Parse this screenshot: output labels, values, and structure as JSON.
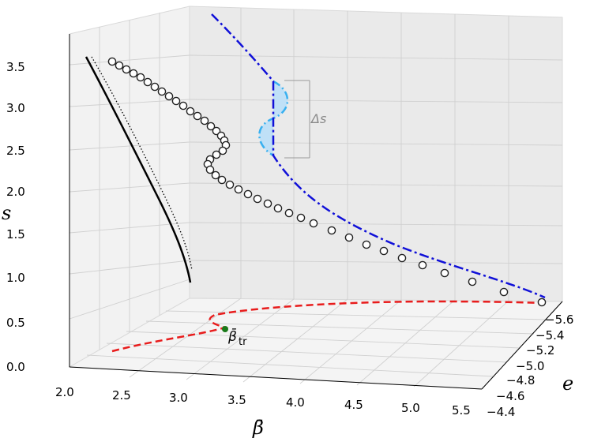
{
  "chart_data": {
    "type": "line3d",
    "axes": {
      "x": {
        "label": "β̄",
        "ticks": [
          "2.0",
          "2.5",
          "3.0",
          "3.5",
          "4.0",
          "4.5",
          "5.0",
          "5.5"
        ]
      },
      "y": {
        "label": "s",
        "ticks": [
          "0.0",
          "0.5",
          "1.0",
          "1.5",
          "2.0",
          "2.5",
          "3.0",
          "3.5"
        ]
      },
      "z": {
        "label": "e",
        "ticks": [
          "−4.4",
          "−4.6",
          "−4.8",
          "−5.0",
          "−5.2",
          "−5.4",
          "−5.6"
        ]
      }
    },
    "annotations": {
      "delta_s": "Δs",
      "beta_tr_main": "β̄",
      "beta_tr_sub": "tr"
    },
    "series": [
      {
        "style": "black-solid",
        "color": "#000000"
      },
      {
        "style": "black-dotted",
        "color": "#000000"
      },
      {
        "style": "circles",
        "color": "#222222"
      },
      {
        "style": "blue-dashdot",
        "color": "#1010d8"
      },
      {
        "style": "lightblue-dashdot",
        "color": "#38b0f0"
      },
      {
        "style": "red-dashed",
        "color": "#e81c1c"
      }
    ],
    "colors": {
      "marker_green": "#1a7a1a",
      "fill_lightblue": "#bfe0f7"
    }
  }
}
